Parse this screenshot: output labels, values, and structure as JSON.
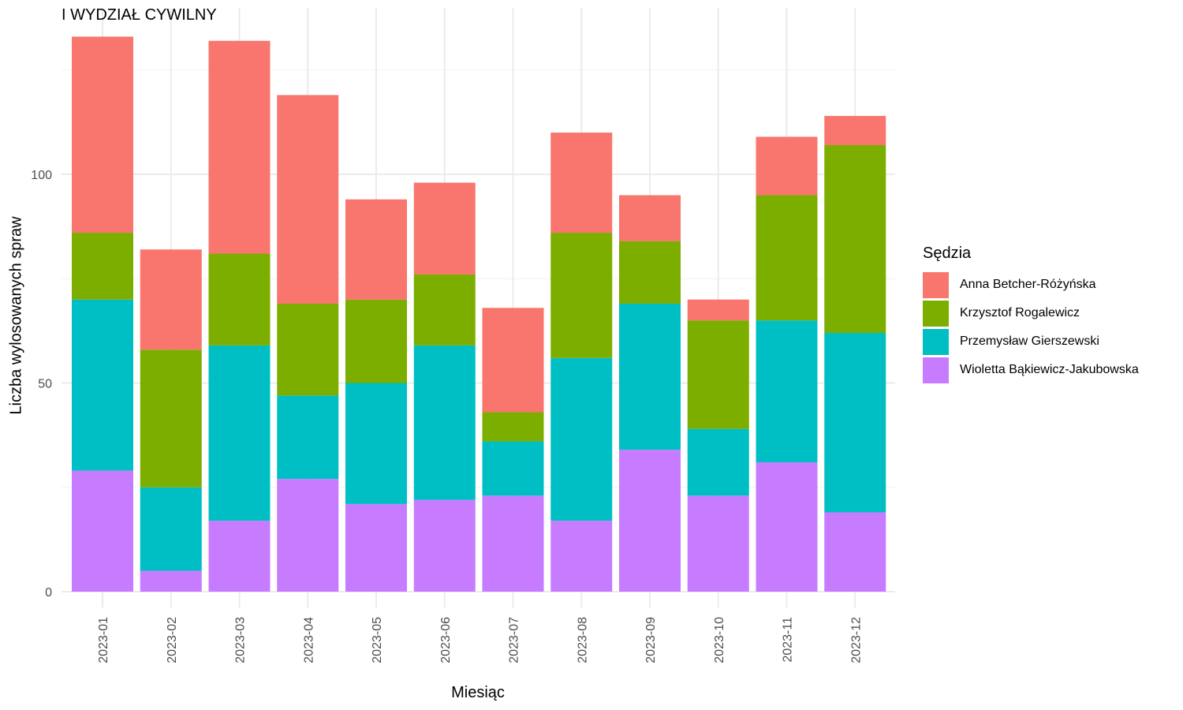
{
  "chart_data": {
    "type": "bar",
    "stacked": true,
    "title": "I WYDZIAŁ CYWILNY",
    "xlabel": "Miesiąc",
    "ylabel": "Liczba wylosowanych spraw",
    "ylim": [
      0,
      140
    ],
    "yticks": [
      0,
      50,
      100
    ],
    "grid": true,
    "legend": {
      "title": "Sędzia",
      "position": "right"
    },
    "categories": [
      "2023-01",
      "2023-02",
      "2023-03",
      "2023-04",
      "2023-05",
      "2023-06",
      "2023-07",
      "2023-08",
      "2023-09",
      "2023-10",
      "2023-11",
      "2023-12"
    ],
    "series": [
      {
        "name": "Wioletta Bąkiewicz-Jakubowska",
        "color": "#C77CFF",
        "values": [
          29,
          5,
          17,
          27,
          21,
          22,
          23,
          17,
          34,
          23,
          31,
          19
        ]
      },
      {
        "name": "Przemysław Gierszewski",
        "color": "#00BFC4",
        "values": [
          41,
          20,
          42,
          20,
          29,
          37,
          13,
          39,
          35,
          16,
          34,
          43
        ]
      },
      {
        "name": "Krzysztof Rogalewicz",
        "color": "#7CAE00",
        "values": [
          16,
          33,
          22,
          22,
          20,
          17,
          7,
          30,
          15,
          26,
          30,
          45
        ]
      },
      {
        "name": "Anna Betcher-Różyńska",
        "color": "#F8766D",
        "values": [
          47,
          24,
          51,
          50,
          24,
          22,
          25,
          24,
          11,
          5,
          14,
          7
        ]
      }
    ],
    "legend_order": [
      "Anna Betcher-Różyńska",
      "Krzysztof Rogalewicz",
      "Przemysław Gierszewski",
      "Wioletta Bąkiewicz-Jakubowska"
    ]
  }
}
